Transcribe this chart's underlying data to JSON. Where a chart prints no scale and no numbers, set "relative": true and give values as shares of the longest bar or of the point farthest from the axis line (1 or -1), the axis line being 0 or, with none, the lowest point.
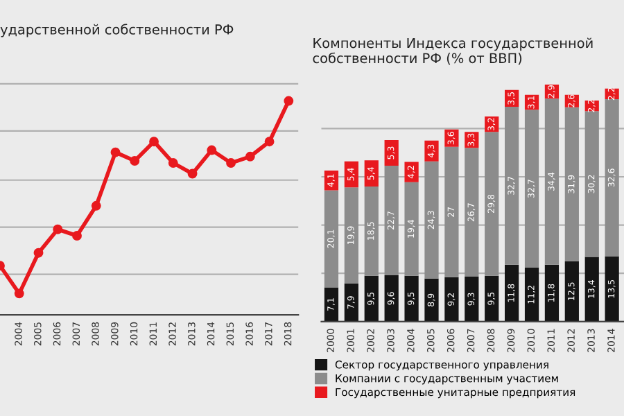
{
  "chart_data": [
    {
      "type": "line",
      "title": "ударственной собственности РФ",
      "relative": true,
      "grid": "y",
      "marker": "circle",
      "line_style": "solid",
      "categories": [
        null,
        "2004",
        "2005",
        "2006",
        "2007",
        "2008",
        "2009",
        "2010",
        "2011",
        "2012",
        "2013",
        "2014",
        "2015",
        "2016",
        "2017",
        "2018"
      ],
      "series": [
        {
          "color": "#e8191e",
          "values": [
            0.23,
            0.1,
            0.29,
            0.4,
            0.37,
            0.51,
            0.76,
            0.72,
            0.81,
            0.71,
            0.66,
            0.77,
            0.71,
            0.74,
            0.81,
            1.0
          ]
        }
      ]
    },
    {
      "type": "bar",
      "title": "Компоненты Индекса государственной собственности РФ (% от ВВП)",
      "stacked": true,
      "grid": "y",
      "legend": "bottom",
      "tick_labels": "x",
      "ylim": [
        0,
        50
      ],
      "yticks": [
        {
          "value": 0,
          "label": null
        },
        {
          "value": 10,
          "label": null
        },
        {
          "value": 20,
          "label": null
        },
        {
          "value": 30,
          "label": null
        },
        {
          "value": 40,
          "label": null
        }
      ],
      "categories": [
        "2000",
        "2001",
        "2002",
        "2003",
        "2004",
        "2005",
        "2006",
        "2007",
        "2008",
        "2009",
        "2010",
        "2011",
        "2012",
        "2013",
        "2014"
      ],
      "series": [
        {
          "name": "Сектор государственного управления",
          "color": "#151515",
          "values": [
            7.1,
            7.9,
            9.5,
            9.6,
            9.5,
            8.9,
            9.2,
            9.3,
            9.5,
            11.8,
            11.2,
            11.8,
            12.5,
            13.4,
            13.5
          ],
          "value_labels": [
            "7,1",
            "7,9",
            "9,5",
            "9,6",
            "9,5",
            "8,9",
            "9,2",
            "9,3",
            "9,5",
            "11,8",
            "11,2",
            "11,8",
            "12,5",
            "13,4",
            "13,5"
          ]
        },
        {
          "name": "Компании с государственным участием",
          "color": "#8c8c8c",
          "values": [
            20.1,
            19.9,
            18.5,
            22.7,
            19.4,
            24.3,
            27,
            26.7,
            29.8,
            32.7,
            32.7,
            34.4,
            31.9,
            30.2,
            32.6
          ],
          "value_labels": [
            "20,1",
            "19,9",
            "18,5",
            "22,7",
            "19,4",
            "24,3",
            "27",
            "26,7",
            "29,8",
            "32,7",
            "32,7",
            "34,4",
            "31,9",
            "30,2",
            "32,6"
          ]
        },
        {
          "name": "Государственные унитарные предприятия",
          "color": "#e8191e",
          "values": [
            4.1,
            5.4,
            5.4,
            5.3,
            4.2,
            4.3,
            3.6,
            3.3,
            3.2,
            3.5,
            3.1,
            2.9,
            2.6,
            2.2,
            2.2
          ],
          "value_labels": [
            "4,1",
            "5,4",
            "5,4",
            "5,3",
            "4,2",
            "4,3",
            "3,6",
            "3,3",
            "3,2",
            "3,5",
            "3,1",
            "2,9",
            "2,6",
            "2,2",
            "2,2"
          ]
        }
      ]
    }
  ]
}
